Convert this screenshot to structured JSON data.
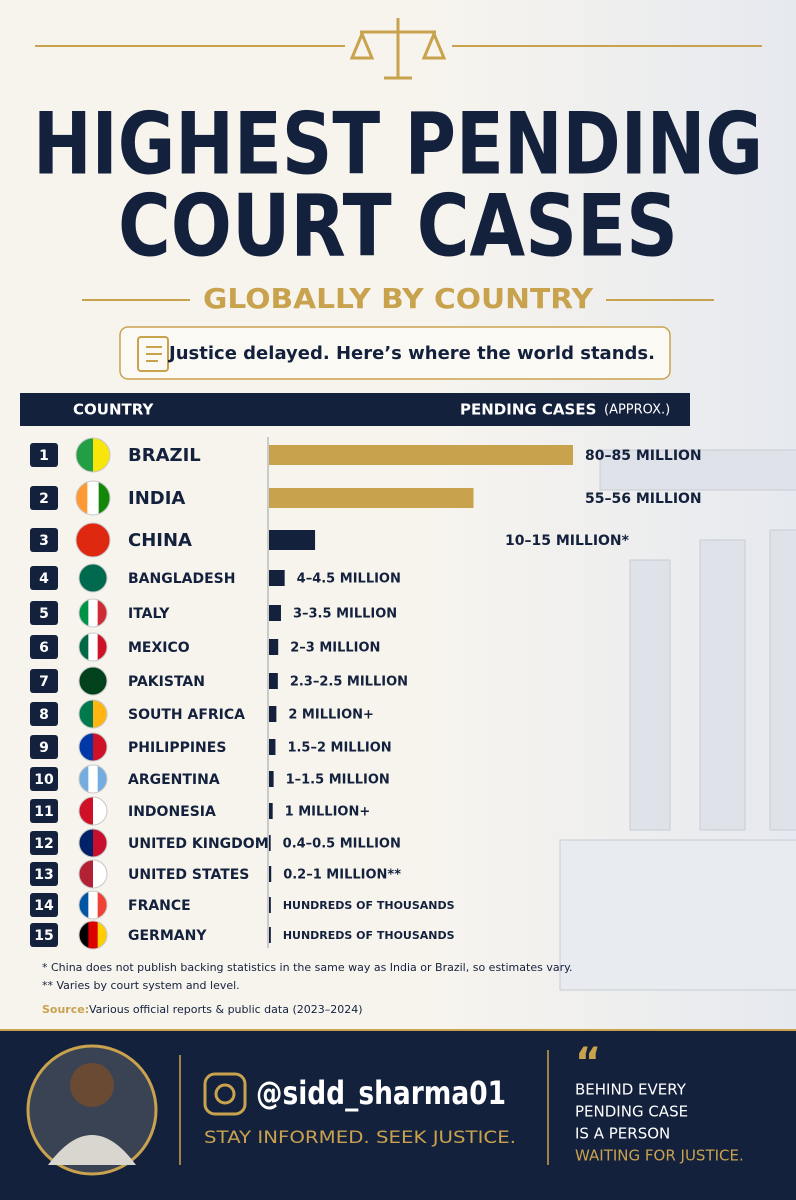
{
  "chart_data": {
    "type": "bar",
    "title_lines": [
      "HIGHEST PENDING",
      "COURT CASES"
    ],
    "subtitle": "GLOBALLY BY COUNTRY",
    "tagline": "Justice delayed. Here’s where the world stands.",
    "header_country": "COUNTRY",
    "header_value": "PENDING CASES",
    "header_value_note": "(APPROX.)",
    "ranks": [
      1,
      2,
      3,
      4,
      5,
      6,
      7,
      8,
      9,
      10,
      11,
      12,
      13,
      14,
      15
    ],
    "categories": [
      "BRAZIL",
      "INDIA",
      "CHINA",
      "BANGLADESH",
      "ITALY",
      "MEXICO",
      "PAKISTAN",
      "SOUTH AFRICA",
      "PHILIPPINES",
      "ARGENTINA",
      "INDONESIA",
      "UNITED KINGDOM",
      "UNITED STATES",
      "FRANCE",
      "GERMANY"
    ],
    "values": [
      82.5,
      55.5,
      12.5,
      4.25,
      3.25,
      2.5,
      2.4,
      2,
      1.75,
      1.25,
      1,
      0.45,
      0.6,
      0.5,
      0.5
    ],
    "value_labels": [
      "80–85 MILLION",
      "55–56 MILLION",
      "10–15 MILLION*",
      "4–4.5 MILLION",
      "3–3.5 MILLION",
      "2–3 MILLION",
      "2.3–2.5 MILLION",
      "2 MILLION+",
      "1.5–2 MILLION",
      "1–1.5 MILLION",
      "1 MILLION+",
      "0.4–0.5 MILLION",
      "0.2–1 MILLION**",
      "HUNDREDS OF THOUSANDS",
      "HUNDREDS OF THOUSANDS"
    ],
    "colors": [
      "#c9a24e",
      "#c9a24e",
      "#14213d",
      "#14213d",
      "#14213d",
      "#14213d",
      "#14213d",
      "#14213d",
      "#14213d",
      "#14213d",
      "#14213d",
      "#14213d",
      "#14213d",
      "#14213d",
      "#14213d"
    ],
    "footnotes": [
      "* China does not publish backing statistics in the same way as India or Brazil, so estimates vary.",
      "** Varies by court system and level."
    ],
    "source_label": "Source:",
    "source": "Various official reports & public data (2023–2024)",
    "handle": "@sidd_sharma01",
    "slogan": "STAY INFORMED. SEEK JUSTICE.",
    "quote_lines": [
      "BEHIND EVERY",
      "PENDING CASE",
      "IS A PERSON"
    ],
    "quote_highlight": "WAITING FOR JUSTICE."
  }
}
